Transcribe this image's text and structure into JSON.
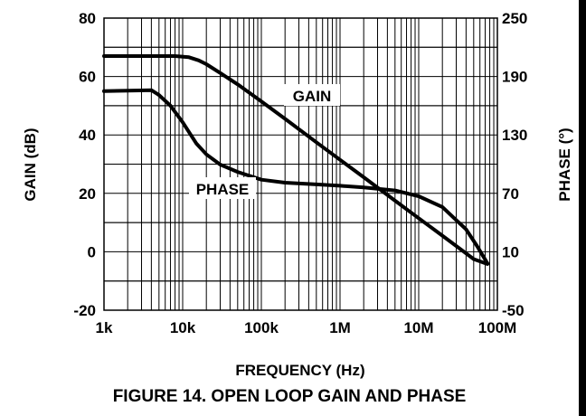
{
  "caption": "FIGURE 14.  OPEN LOOP GAIN AND PHASE",
  "chart_data": {
    "type": "line",
    "title": "FIGURE 14.  OPEN LOOP GAIN AND PHASE",
    "xlabel": "FREQUENCY (Hz)",
    "ylabel": "GAIN (dB)",
    "y2label": "PHASE (°)",
    "xscale": "log",
    "xlim": [
      1000,
      100000000
    ],
    "ylim": [
      -20,
      80
    ],
    "y2lim": [
      -50,
      250
    ],
    "grid": true,
    "x_ticks": [
      {
        "value": 1000,
        "label": "1k"
      },
      {
        "value": 10000,
        "label": "10k"
      },
      {
        "value": 100000,
        "label": "100k"
      },
      {
        "value": 1000000,
        "label": "1M"
      },
      {
        "value": 10000000,
        "label": "10M"
      },
      {
        "value": 100000000,
        "label": "100M"
      }
    ],
    "y_ticks": [
      {
        "value": 80,
        "label": "80"
      },
      {
        "value": 60,
        "label": "60"
      },
      {
        "value": 40,
        "label": "40"
      },
      {
        "value": 20,
        "label": "20"
      },
      {
        "value": 0,
        "label": "0"
      },
      {
        "value": -20,
        "label": "-20"
      }
    ],
    "y2_ticks": [
      {
        "value": 250,
        "label": "250"
      },
      {
        "value": 190,
        "label": "190"
      },
      {
        "value": 130,
        "label": "130"
      },
      {
        "value": 70,
        "label": "70"
      },
      {
        "value": 10,
        "label": "10"
      },
      {
        "value": -50,
        "label": "-50"
      }
    ],
    "series": [
      {
        "name": "GAIN",
        "axis": "left",
        "x": [
          1000,
          3000,
          8000,
          12000,
          16000,
          20000,
          30000,
          50000,
          100000,
          200000,
          500000,
          1000000,
          2000000,
          5000000,
          10000000,
          20000000,
          50000000,
          75000000
        ],
        "y": [
          67,
          67,
          67,
          66.6,
          65.5,
          64.2,
          61.2,
          57.3,
          51.5,
          45.5,
          37.5,
          31.5,
          25.5,
          17.5,
          11.5,
          5.5,
          -2.5,
          -4.2
        ]
      },
      {
        "name": "PHASE",
        "axis": "right",
        "x": [
          1000,
          2000,
          4000,
          5000,
          7000,
          10000,
          15000,
          20000,
          30000,
          50000,
          100000,
          200000,
          500000,
          1000000,
          2000000,
          5000000,
          10000000,
          20000000,
          40000000,
          55000000,
          75000000
        ],
        "y": [
          175,
          175.5,
          176,
          171,
          160,
          143,
          121,
          110,
          99.5,
          92,
          84,
          81,
          79.2,
          77.8,
          76,
          73,
          67,
          56,
          33,
          16,
          -2
        ]
      }
    ]
  }
}
